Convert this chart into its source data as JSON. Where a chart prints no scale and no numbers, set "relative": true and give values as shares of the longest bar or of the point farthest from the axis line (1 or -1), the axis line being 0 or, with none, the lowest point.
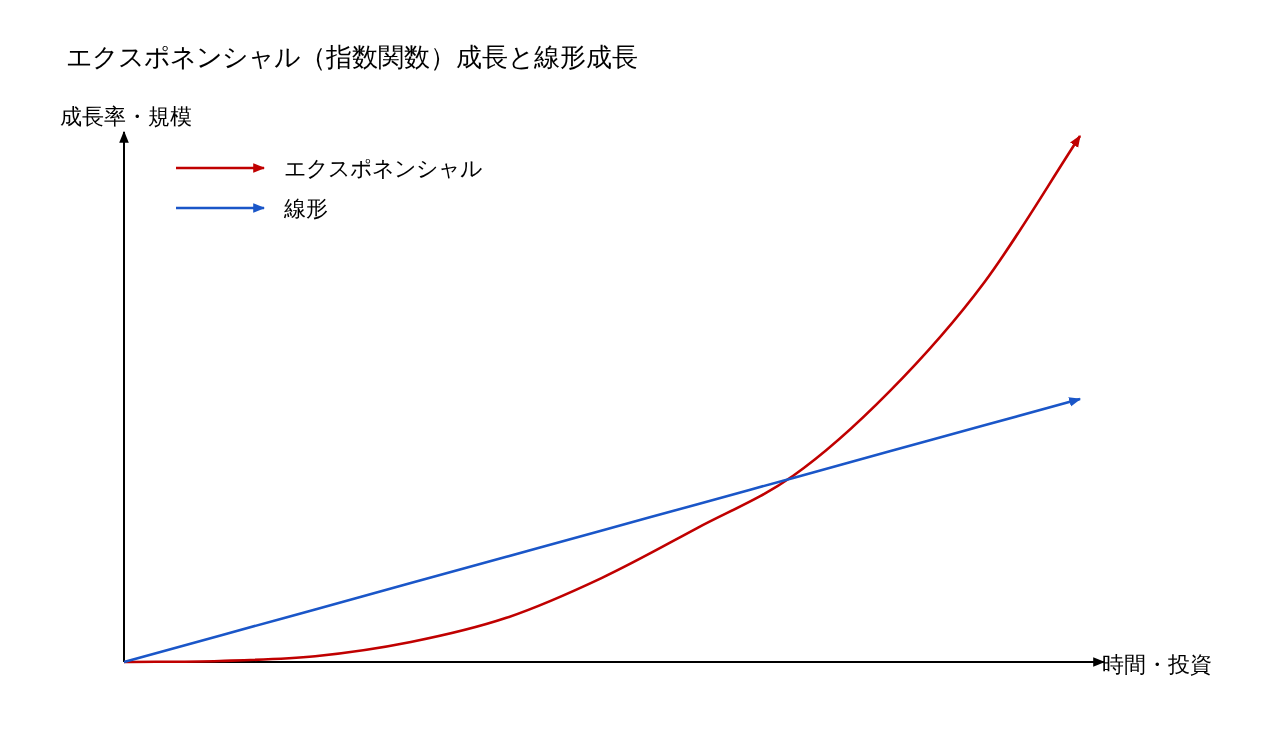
{
  "chart_data": {
    "type": "line",
    "title": "エクスポネンシャル（指数関数）成長と線形成長",
    "xlabel": "時間・投資",
    "ylabel": "成長率・規模",
    "relative": true,
    "legend": "top left",
    "categories": [
      null,
      null,
      null,
      null,
      null,
      null,
      null,
      null,
      null,
      null,
      null
    ],
    "series": [
      {
        "name": "エクスポネンシャル",
        "color": "#c00000",
        "values": [
          0,
          0.002,
          0.011,
          0.038,
          0.084,
          0.16,
          0.255,
          0.354,
          0.513,
          0.722,
          1
        ]
      },
      {
        "name": "線形",
        "color": "#1a56c8",
        "values": [
          0,
          0.05,
          0.1,
          0.15,
          0.2,
          0.25,
          0.3,
          0.35,
          0.4,
          0.45,
          0.5
        ]
      }
    ]
  }
}
